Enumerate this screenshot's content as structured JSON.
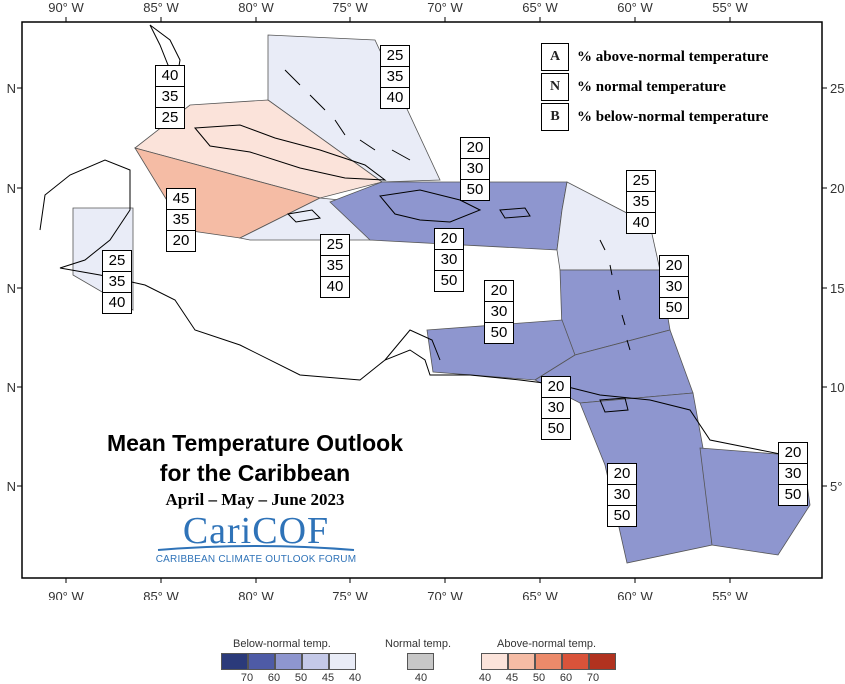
{
  "map": {
    "lon_ticks_top": [
      "90° W",
      "85° W",
      "80° W",
      "75° W",
      "70° W",
      "65° W",
      "60° W",
      "55° W"
    ],
    "lon_ticks_bottom": [
      "90° W",
      "85° W",
      "80° W",
      "75° W",
      "70° W",
      "65° W",
      "60° W",
      "55° W"
    ],
    "lat_ticks_left": [
      "N",
      "N",
      "N",
      "N",
      "N"
    ],
    "lat_ticks_right": [
      "25",
      "20",
      "15",
      "10",
      "5° N"
    ],
    "colors": {
      "below_50": "#8e96cf",
      "below_40": "#e9ecf7",
      "above_40": "#fbe3da",
      "above_45": "#f5bca5",
      "land_outline": "#000000",
      "frame": "#000000"
    }
  },
  "key": {
    "rows": [
      {
        "letter": "A",
        "text": "% above-normal temperature"
      },
      {
        "letter": "N",
        "text": "% normal temperature"
      },
      {
        "letter": "B",
        "text": "% below-normal temperature"
      }
    ]
  },
  "title": {
    "line1": "Mean Temperature Outlook",
    "line2": "for the Caribbean",
    "period": "April – May – June 2023"
  },
  "logo": {
    "wordmark": "CariCOF",
    "tagline": "CARIBBEAN CLIMATE OUTLOOK FORUM"
  },
  "boxes": [
    {
      "region": "cuba-jamaica-north",
      "values": [
        "40",
        "35",
        "25"
      ]
    },
    {
      "region": "bahamas",
      "values": [
        "25",
        "35",
        "40"
      ]
    },
    {
      "region": "hispaniola-north",
      "values": [
        "20",
        "30",
        "50"
      ]
    },
    {
      "region": "western-caribbean-sea",
      "values": [
        "45",
        "35",
        "20"
      ]
    },
    {
      "region": "northern-leeward-islands",
      "values": [
        "25",
        "35",
        "40"
      ]
    },
    {
      "region": "belize",
      "values": [
        "25",
        "35",
        "40"
      ]
    },
    {
      "region": "jamaica-south",
      "values": [
        "25",
        "35",
        "40"
      ]
    },
    {
      "region": "hispaniola-puerto-rico",
      "values": [
        "20",
        "30",
        "50"
      ]
    },
    {
      "region": "windward-islands",
      "values": [
        "20",
        "30",
        "50"
      ]
    },
    {
      "region": "southern-caribbean",
      "values": [
        "20",
        "30",
        "50"
      ]
    },
    {
      "region": "trinidad",
      "values": [
        "20",
        "30",
        "50"
      ]
    },
    {
      "region": "guyana",
      "values": [
        "20",
        "30",
        "50"
      ]
    },
    {
      "region": "french-guiana-suriname",
      "values": [
        "20",
        "30",
        "50"
      ]
    }
  ],
  "colorbar": {
    "below_title": "Below-normal temp.",
    "normal_title": "Normal temp.",
    "above_title": "Above-normal temp.",
    "below_swatches": [
      "#2b3a7a",
      "#4e5ba6",
      "#8e96cf",
      "#c4c9e8",
      "#e9ecf7"
    ],
    "normal_swatch": "#c7c7c7",
    "above_swatches": [
      "#fbe3da",
      "#f5bca5",
      "#eb8a6a",
      "#d9533a",
      "#b1321f"
    ],
    "below_ticks": [
      "70",
      "60",
      "50",
      "45",
      "40"
    ],
    "normal_tick": "40",
    "above_ticks": [
      "40",
      "45",
      "50",
      "60",
      "70"
    ]
  }
}
